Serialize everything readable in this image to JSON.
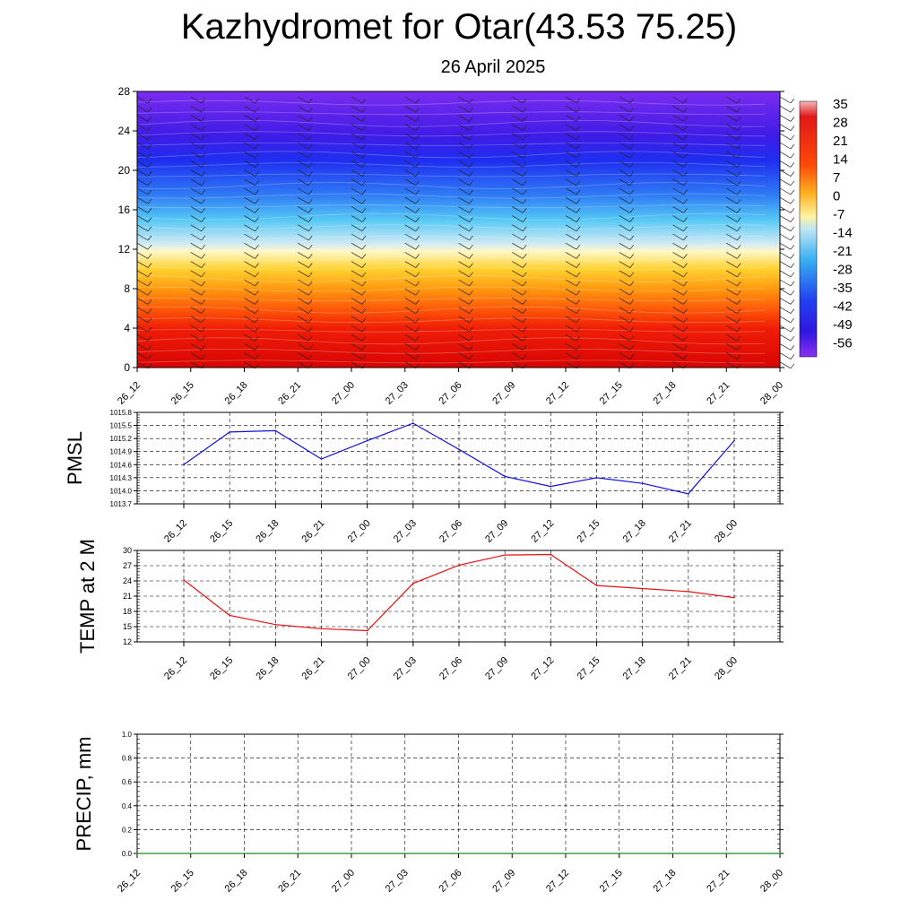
{
  "title": "Kazhydromet for Otar(43.53 75.25)",
  "subtitle": "26 April 2025",
  "time_labels": [
    "26_12",
    "26_15",
    "26_18",
    "26_21",
    "27_00",
    "27_03",
    "27_06",
    "27_09",
    "27_12",
    "27_15",
    "27_18",
    "27_21",
    "28_00"
  ],
  "chart_data": [
    {
      "type": "heatmap",
      "name": "cross-section",
      "y_ticks": [
        "0",
        "4",
        "8",
        "12",
        "16",
        "20",
        "24",
        "28"
      ],
      "ylim": [
        0,
        28
      ],
      "colorbar_labels": [
        "35",
        "28",
        "21",
        "14",
        "7",
        "0",
        "-7",
        "-14",
        "-21",
        "-28",
        "-35",
        "-42",
        "-49",
        "-56"
      ],
      "colorbar_range": [
        -63,
        42
      ],
      "colors": [
        "#7b2cf0",
        "#3f1be6",
        "#1e2ef0",
        "#2f7bf5",
        "#55c8f5",
        "#cfeaf5",
        "#fff8c8",
        "#ffd230",
        "#ff9a10",
        "#ff5a08",
        "#f01e06",
        "#d80404"
      ],
      "color_stops_y": [
        28,
        23.5,
        21,
        17.5,
        15,
        12.6,
        11.8,
        10,
        8,
        6,
        4,
        0
      ]
    },
    {
      "type": "line",
      "ylabel": "PMSL",
      "ylim": [
        1013.7,
        1015.8
      ],
      "y_ticks": [
        "1015.8",
        "1015.5",
        "1015.2",
        "1014.9",
        "1014.6",
        "1014.3",
        "1014.0",
        "1013.7"
      ],
      "series_color": "#1010e0",
      "values": [
        1014.6,
        1015.35,
        1015.38,
        1014.73,
        1015.15,
        1015.55,
        1014.95,
        1014.33,
        1014.1,
        1014.3,
        1014.17,
        1013.93,
        1015.15
      ]
    },
    {
      "type": "line",
      "ylabel": "TEMP at 2 M",
      "ylim": [
        12,
        30
      ],
      "y_ticks": [
        "30",
        "27",
        "24",
        "21",
        "18",
        "15",
        "12"
      ],
      "series_color": "#e81010",
      "values": [
        24.2,
        17.2,
        15.4,
        14.6,
        14.2,
        23.5,
        27.1,
        29.1,
        29.2,
        23.1,
        22.5,
        21.9,
        20.7
      ]
    },
    {
      "type": "line",
      "ylabel": "PRECIP, mm",
      "ylim": [
        0,
        1
      ],
      "y_ticks": [
        "1.0",
        "0.8",
        "0.6",
        "0.4",
        "0.2",
        "0.0"
      ],
      "series_color": "#1a8a1a",
      "values": [
        0,
        0,
        0,
        0,
        0,
        0,
        0,
        0,
        0,
        0,
        0,
        0,
        0
      ]
    }
  ]
}
